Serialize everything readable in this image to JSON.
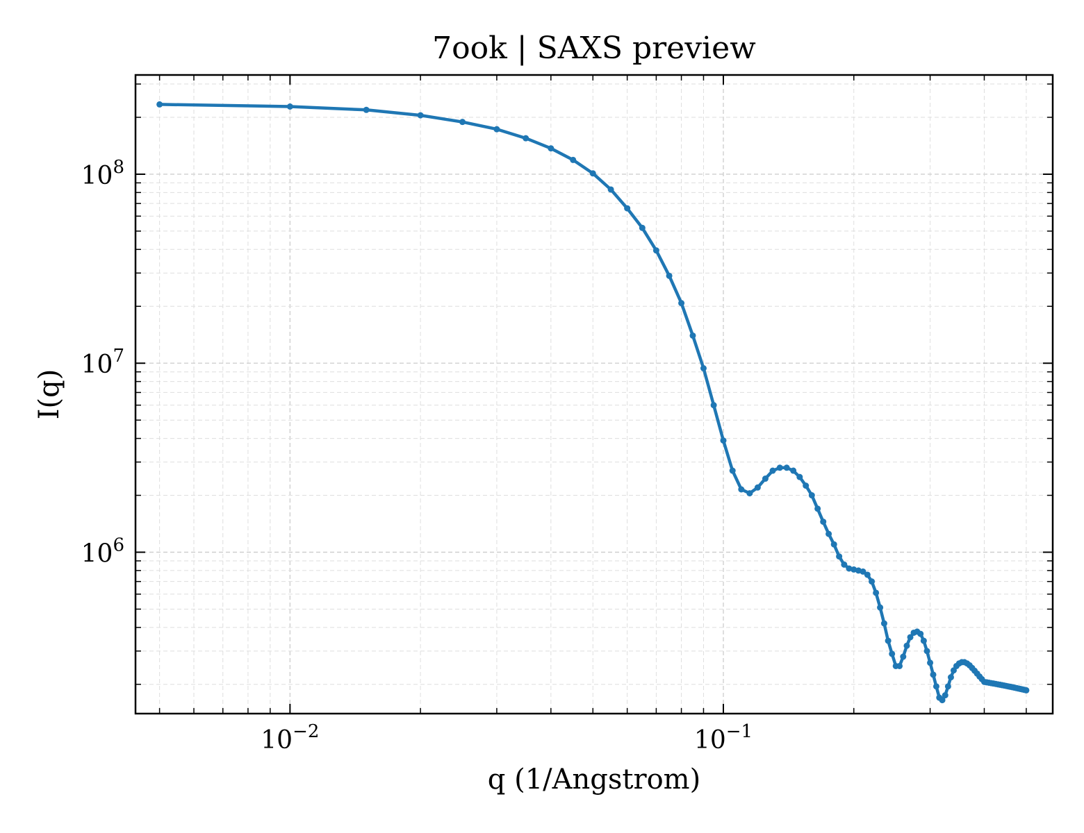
{
  "chart_data": {
    "type": "line",
    "title": "7ook | SAXS preview",
    "xlabel": "q (1/Angstrom)",
    "ylabel": "I(q)",
    "xscale": "log",
    "yscale": "log",
    "xlim": [
      0.0044,
      0.5755
    ],
    "ylim": [
      140000,
      335000000
    ],
    "grid": true,
    "x_ticks": [
      {
        "value": 0.01,
        "base": "10",
        "exp": "−2"
      },
      {
        "value": 0.1,
        "base": "10",
        "exp": "−1"
      }
    ],
    "y_ticks": [
      {
        "value": 1000000,
        "base": "10",
        "exp": "6"
      },
      {
        "value": 10000000,
        "base": "10",
        "exp": "7"
      },
      {
        "value": 100000000,
        "base": "10",
        "exp": "8"
      }
    ],
    "series": [
      {
        "color": "#1f77b4",
        "marker": "circle",
        "x": [
          0.005,
          0.01,
          0.015,
          0.02,
          0.025,
          0.03,
          0.035,
          0.04,
          0.045,
          0.05,
          0.055,
          0.06,
          0.065,
          0.07,
          0.075,
          0.08,
          0.085,
          0.09,
          0.095,
          0.1,
          0.105,
          0.11,
          0.115,
          0.12,
          0.125,
          0.13,
          0.135,
          0.14,
          0.145,
          0.15,
          0.155,
          0.16,
          0.165,
          0.17,
          0.175,
          0.18,
          0.185,
          0.19,
          0.195,
          0.2,
          0.205,
          0.21,
          0.215,
          0.22,
          0.225,
          0.23,
          0.235,
          0.24,
          0.245,
          0.25,
          0.255,
          0.26,
          0.265,
          0.27,
          0.275,
          0.28,
          0.285,
          0.29,
          0.295,
          0.3,
          0.305,
          0.31,
          0.315,
          0.32,
          0.325,
          0.33,
          0.335,
          0.34,
          0.345,
          0.35,
          0.355,
          0.36,
          0.365,
          0.37,
          0.375,
          0.38,
          0.385,
          0.39,
          0.395,
          0.4,
          0.405,
          0.41,
          0.415,
          0.42,
          0.425,
          0.43,
          0.435,
          0.44,
          0.445,
          0.45,
          0.455,
          0.46,
          0.465,
          0.47,
          0.475,
          0.48,
          0.485,
          0.49,
          0.495,
          0.5
        ],
        "y": [
          234000000,
          228000000,
          219000000,
          205000000,
          189000000,
          173000000,
          155000000,
          137000000,
          119000000,
          101000000,
          83000000,
          66000000,
          52000000,
          39500000,
          29000000,
          20800000,
          14000000,
          9400000,
          6000000,
          3900000,
          2700000,
          2150000,
          2050000,
          2200000,
          2450000,
          2700000,
          2800000,
          2800000,
          2700000,
          2500000,
          2250000,
          2000000,
          1700000,
          1450000,
          1250000,
          1100000,
          950000,
          860000,
          820000,
          810000,
          800000,
          790000,
          760000,
          700000,
          610000,
          510000,
          420000,
          340000,
          290000,
          250000,
          250000,
          280000,
          320000,
          355000,
          375000,
          380000,
          370000,
          340000,
          300000,
          260000,
          225000,
          195000,
          170000,
          165000,
          175000,
          195000,
          218000,
          237000,
          250000,
          258000,
          262000,
          262000,
          258000,
          252000,
          244000,
          236000,
          228000,
          220000,
          213000,
          206000,
          205000,
          204000,
          203000,
          202000,
          201000,
          200000,
          199000,
          198000,
          197000,
          196000,
          195000,
          194000,
          193000,
          192000,
          191000,
          190000,
          189000,
          188000,
          187000,
          186000
        ]
      }
    ]
  }
}
